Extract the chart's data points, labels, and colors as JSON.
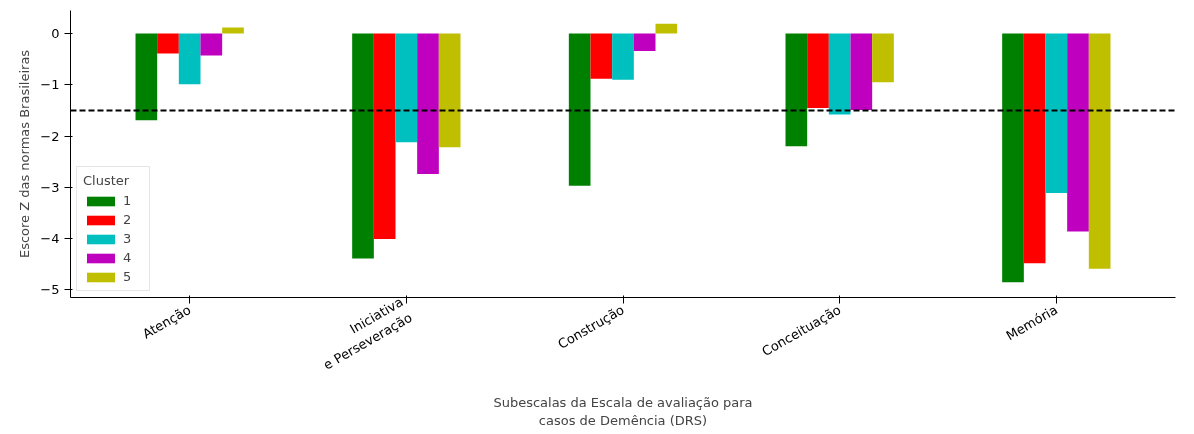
{
  "chart_data": {
    "type": "bar",
    "xlabel": "Subescalas da Escala de avaliação para\ncasos de Demência (DRS)",
    "ylabel": "Escore Z das normas Brasileiras",
    "legend_title": "Cluster",
    "categories": [
      "Atenção",
      "Iniciativa\ne Perseveração",
      "Construção",
      "Conceituação",
      "Memória"
    ],
    "series": [
      {
        "name": "1",
        "color": "#008000",
        "values": [
          -1.69,
          -4.39,
          -2.97,
          -2.2,
          -4.85
        ]
      },
      {
        "name": "2",
        "color": "#ff0000",
        "values": [
          -0.39,
          -4.01,
          -0.88,
          -1.45,
          -4.48
        ]
      },
      {
        "name": "3",
        "color": "#00bfbf",
        "values": [
          -0.99,
          -2.12,
          -0.9,
          -1.58,
          -3.11
        ]
      },
      {
        "name": "4",
        "color": "#bf00bf",
        "values": [
          -0.43,
          -2.74,
          -0.34,
          -1.49,
          -3.86
        ]
      },
      {
        "name": "5",
        "color": "#bfbf00",
        "values": [
          0.12,
          -2.22,
          0.19,
          -0.95,
          -4.59
        ]
      }
    ],
    "ylim": [
      -5.15,
      0.45
    ],
    "yticks": [
      {
        "value": -5,
        "label": "−5"
      },
      {
        "value": -4,
        "label": "−4"
      },
      {
        "value": -3,
        "label": "−3"
      },
      {
        "value": -2,
        "label": "−2"
      },
      {
        "value": -1,
        "label": "−1"
      },
      0
    ],
    "ref_lines": [
      {
        "axis": "y",
        "value": -1.5,
        "color": "#000000",
        "line_style": "dashed"
      }
    ],
    "legend": "bottom left",
    "grid": false
  }
}
